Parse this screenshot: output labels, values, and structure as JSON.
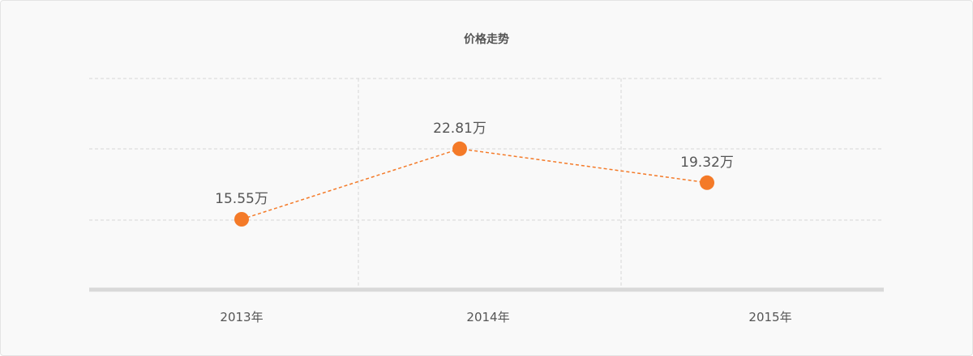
{
  "chart_data": {
    "type": "line",
    "title": "价格走势",
    "categories": [
      "2013年",
      "2014年",
      "2015年"
    ],
    "series": [
      {
        "values": [
          15.55,
          22.81,
          19.32
        ],
        "labels": [
          "15.55万",
          "22.81万",
          "19.32万"
        ]
      }
    ],
    "ylim": [
      8.3,
      30.05
    ],
    "grid": true,
    "legend": "none",
    "colors": {
      "series": "#f47a28",
      "grid": "#d6d6d6",
      "axis": "#d9d9d9",
      "text": "#555555"
    }
  }
}
